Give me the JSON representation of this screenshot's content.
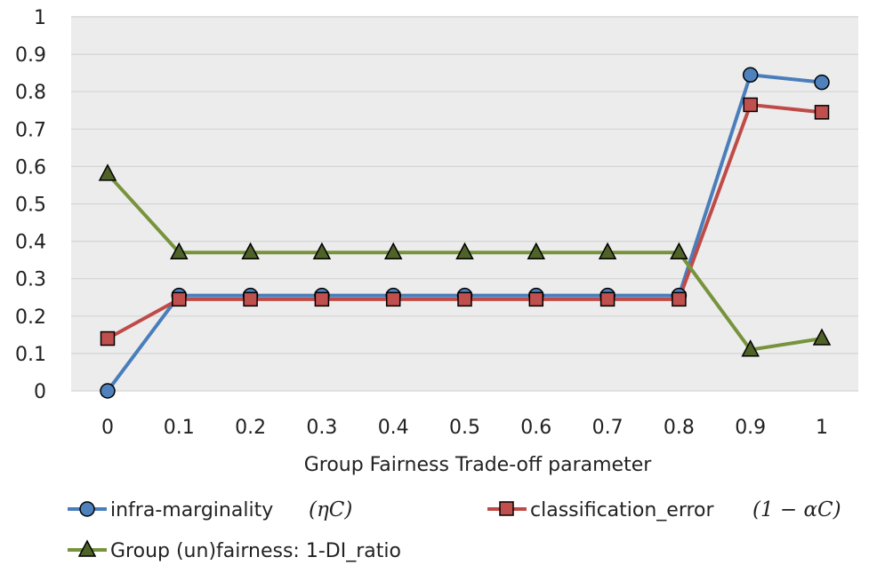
{
  "chart_data": {
    "type": "line",
    "x": [
      0,
      0.1,
      0.2,
      0.3,
      0.4,
      0.5,
      0.6,
      0.7,
      0.8,
      0.9,
      1
    ],
    "categories": [
      "0",
      "0.1",
      "0.2",
      "0.3",
      "0.4",
      "0.5",
      "0.6",
      "0.7",
      "0.8",
      "0.9",
      "1"
    ],
    "xlabel": "Group Fairness Trade-off parameter",
    "ylabel": "",
    "ylim": [
      0,
      1
    ],
    "yticks": [
      "0",
      "0.1",
      "0.2",
      "0.3",
      "0.4",
      "0.5",
      "0.6",
      "0.7",
      "0.8",
      "0.9",
      "1"
    ],
    "grid": true,
    "legend_position": "bottom",
    "series": [
      {
        "name": "infra-marginality",
        "math": "(ηC)",
        "color": "#4A7EBB",
        "marker_fill": "#4F81BD",
        "marker": "circle",
        "values": [
          0.0,
          0.255,
          0.255,
          0.255,
          0.255,
          0.255,
          0.255,
          0.255,
          0.255,
          0.845,
          0.825
        ]
      },
      {
        "name": "classification_error",
        "math": "(1 − αC)",
        "color": "#BE4B48",
        "marker_fill": "#C0504D",
        "marker": "square",
        "values": [
          0.14,
          0.245,
          0.245,
          0.245,
          0.245,
          0.245,
          0.245,
          0.245,
          0.245,
          0.765,
          0.745
        ]
      },
      {
        "name": "Group (un)fairness: 1-DI_ratio",
        "math": "",
        "color": "#77933C",
        "marker_fill": "#4F6228",
        "marker": "triangle",
        "values": [
          0.58,
          0.37,
          0.37,
          0.37,
          0.37,
          0.37,
          0.37,
          0.37,
          0.37,
          0.11,
          0.14
        ]
      }
    ]
  }
}
